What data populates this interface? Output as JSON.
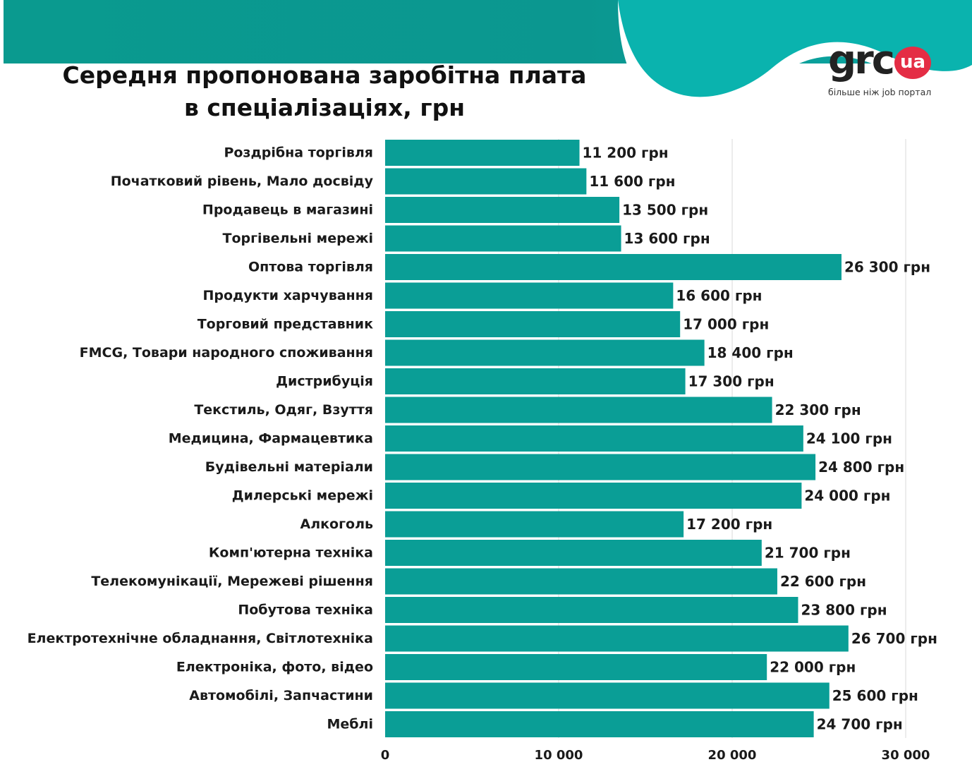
{
  "title_line1": "Середня пропонована заробітна плата",
  "title_line2": "в спеціалізаціях, грн",
  "logo": {
    "brand": "grc",
    "badge": "ua",
    "tagline": "більше ніж job портал"
  },
  "colors": {
    "bar": "#0a9e96",
    "band": "#0a9a8f",
    "wave": "#0ab3ae",
    "grid": "#d9d9d9",
    "logo_badge": "#e42d45"
  },
  "chart_data": {
    "type": "bar",
    "orientation": "horizontal",
    "title": "Середня пропонована заробітна плата в спеціалізаціях, грн",
    "categories": [
      "Роздрібна торгівля",
      "Початковий рівень, Мало досвіду",
      "Продавець в магазині",
      "Торгівельні мережі",
      "Оптова торгівля",
      "Продукти харчування",
      "Торговий представник",
      "FMCG, Товари народного споживання",
      "Дистрибуція",
      "Текстиль, Одяг, Взуття",
      "Медицина, Фармацевтика",
      "Будівельні матеріали",
      "Дилерські мережі",
      "Алкоголь",
      "Комп'ютерна техніка",
      "Телекомунікації, Мережеві рішення",
      "Побутова техніка",
      "Електротехнічне обладнання, Світлотехніка",
      "Електроніка, фото, відео",
      "Автомобілі, Запчастини",
      "Меблі"
    ],
    "values": [
      11200,
      11600,
      13500,
      13600,
      26300,
      16600,
      17000,
      18400,
      17300,
      22300,
      24100,
      24800,
      24000,
      17200,
      21700,
      22600,
      23800,
      26700,
      22000,
      25600,
      24700
    ],
    "data_labels": [
      "11 200 грн",
      "11 600 грн",
      "13 500 грн",
      "13 600 грн",
      "26 300 грн",
      "16 600 грн",
      "17 000 грн",
      "18 400 грн",
      "17 300 грн",
      "22 300 грн",
      "24 100 грн",
      "24 800 грн",
      "24 000 грн",
      "17 200 грн",
      "21 700 грн",
      "22 600 грн",
      "23 800 грн",
      "26 700 грн",
      "22 000 грн",
      "25 600 грн",
      "24 700 грн"
    ],
    "x_ticks": [
      0,
      10000,
      20000,
      30000
    ],
    "x_tick_labels": [
      "0",
      "10 000",
      "20 000",
      "30 000"
    ],
    "xlim": [
      0,
      30000
    ],
    "grid": "vertical"
  }
}
